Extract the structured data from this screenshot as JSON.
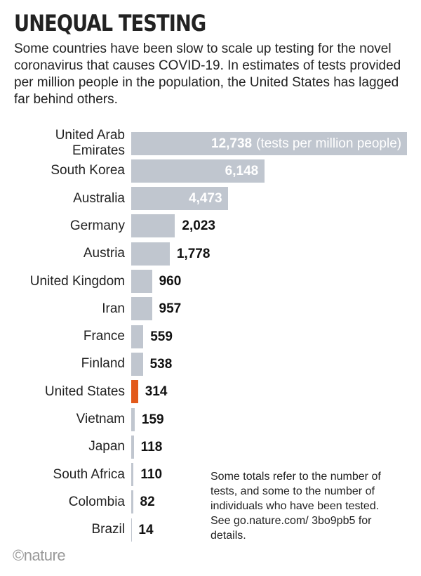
{
  "chart_data": {
    "type": "bar",
    "orientation": "horizontal",
    "title": "UNEQUAL TESTING",
    "subtitle": "Some countries have been slow to scale up testing for the novel coronavirus that causes COVID-19. In estimates of tests provided per million people in the population, the United States has lagged far behind others.",
    "categories": [
      "United Arab Emirates",
      "South Korea",
      "Australia",
      "Germany",
      "Austria",
      "United Kingdom",
      "Iran",
      "France",
      "Finland",
      "United States",
      "Vietnam",
      "Japan",
      "South Africa",
      "Colombia",
      "Brazil"
    ],
    "values": [
      12738,
      6148,
      4473,
      2023,
      1778,
      960,
      957,
      559,
      538,
      314,
      159,
      118,
      110,
      82,
      14
    ],
    "value_labels": [
      "12,738",
      "6,148",
      "4,473",
      "2,023",
      "1,778",
      "960",
      "957",
      "559",
      "538",
      "314",
      "159",
      "118",
      "110",
      "82",
      "14"
    ],
    "unit_annotation": "(tests per million people)",
    "color": "#c0c6cf",
    "highlight": "United States",
    "highlight_color": "#e2591b",
    "note": "Some totals refer to the number of tests, and some to the number of individuals who have been tested. See go.nature.com/ 3bo9pb5 for details.",
    "source": "©nature"
  }
}
